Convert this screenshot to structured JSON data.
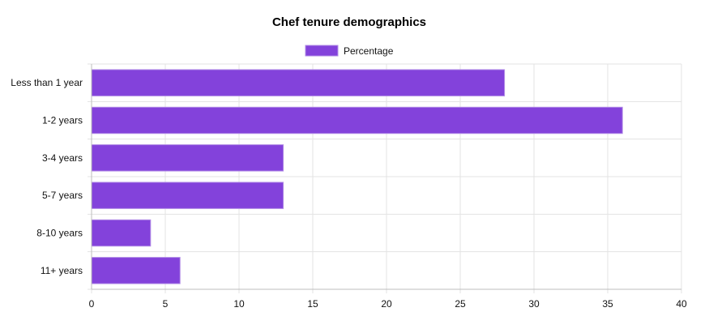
{
  "chart_data": {
    "type": "bar",
    "orientation": "horizontal",
    "title": "Chef tenure demographics",
    "categories": [
      "Less than 1 year",
      "1-2 years",
      "3-4 years",
      "5-7 years",
      "8-10 years",
      "11+ years"
    ],
    "series": [
      {
        "name": "Percentage",
        "values": [
          28,
          36,
          13,
          13,
          4,
          6
        ],
        "color": "#8342db",
        "border_color": "#b28ce6"
      }
    ],
    "xlim": [
      0,
      40
    ],
    "x_ticks": [
      0,
      5,
      10,
      15,
      20,
      25,
      30,
      35,
      40
    ],
    "grid": true,
    "legend_position": "top"
  }
}
